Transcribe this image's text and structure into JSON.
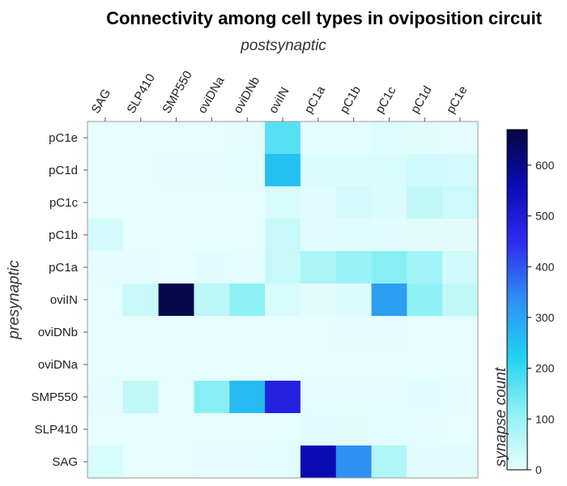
{
  "chart_data": {
    "type": "heatmap",
    "title": "Connectivity among cell types in oviposition circuit",
    "xlabel": "postsynaptic",
    "ylabel": "presynaptic",
    "x_categories": [
      "SAG",
      "SLP410",
      "SMP550",
      "oviDNa",
      "oviDNb",
      "oviIN",
      "pC1a",
      "pC1b",
      "pC1c",
      "pC1d",
      "pC1e"
    ],
    "y_categories": [
      "pC1e",
      "pC1d",
      "pC1c",
      "pC1b",
      "pC1a",
      "oviIN",
      "oviDNb",
      "oviDNa",
      "SMP550",
      "SLP410",
      "SAG"
    ],
    "values": [
      [
        2,
        3,
        3,
        4,
        5,
        170,
        6,
        6,
        12,
        8,
        5
      ],
      [
        3,
        4,
        5,
        5,
        6,
        250,
        15,
        15,
        20,
        30,
        25
      ],
      [
        3,
        4,
        4,
        3,
        4,
        20,
        10,
        25,
        15,
        50,
        35
      ],
      [
        25,
        3,
        2,
        2,
        2,
        40,
        10,
        12,
        10,
        8,
        8
      ],
      [
        5,
        5,
        2,
        10,
        5,
        40,
        80,
        100,
        120,
        90,
        30
      ],
      [
        3,
        40,
        660,
        55,
        110,
        20,
        8,
        15,
        310,
        110,
        50
      ],
      [
        2,
        2,
        3,
        3,
        2,
        3,
        4,
        5,
        5,
        4,
        3
      ],
      [
        2,
        2,
        2,
        2,
        2,
        2,
        3,
        3,
        3,
        3,
        2
      ],
      [
        5,
        50,
        3,
        120,
        260,
        480,
        5,
        5,
        5,
        10,
        5
      ],
      [
        2,
        2,
        3,
        3,
        3,
        4,
        10,
        8,
        6,
        5,
        4
      ],
      [
        20,
        4,
        4,
        5,
        5,
        6,
        560,
        330,
        70,
        10,
        10
      ]
    ],
    "colorbar": {
      "label": "synapse count",
      "range": [
        0,
        670
      ],
      "ticks": [
        0,
        100,
        200,
        300,
        400,
        500,
        600
      ],
      "stops": [
        "#e8fdfd",
        "#8ff1f4",
        "#22d0f2",
        "#2f8ff2",
        "#2f2cf0",
        "#0b0bb6",
        "#05073f"
      ]
    }
  }
}
